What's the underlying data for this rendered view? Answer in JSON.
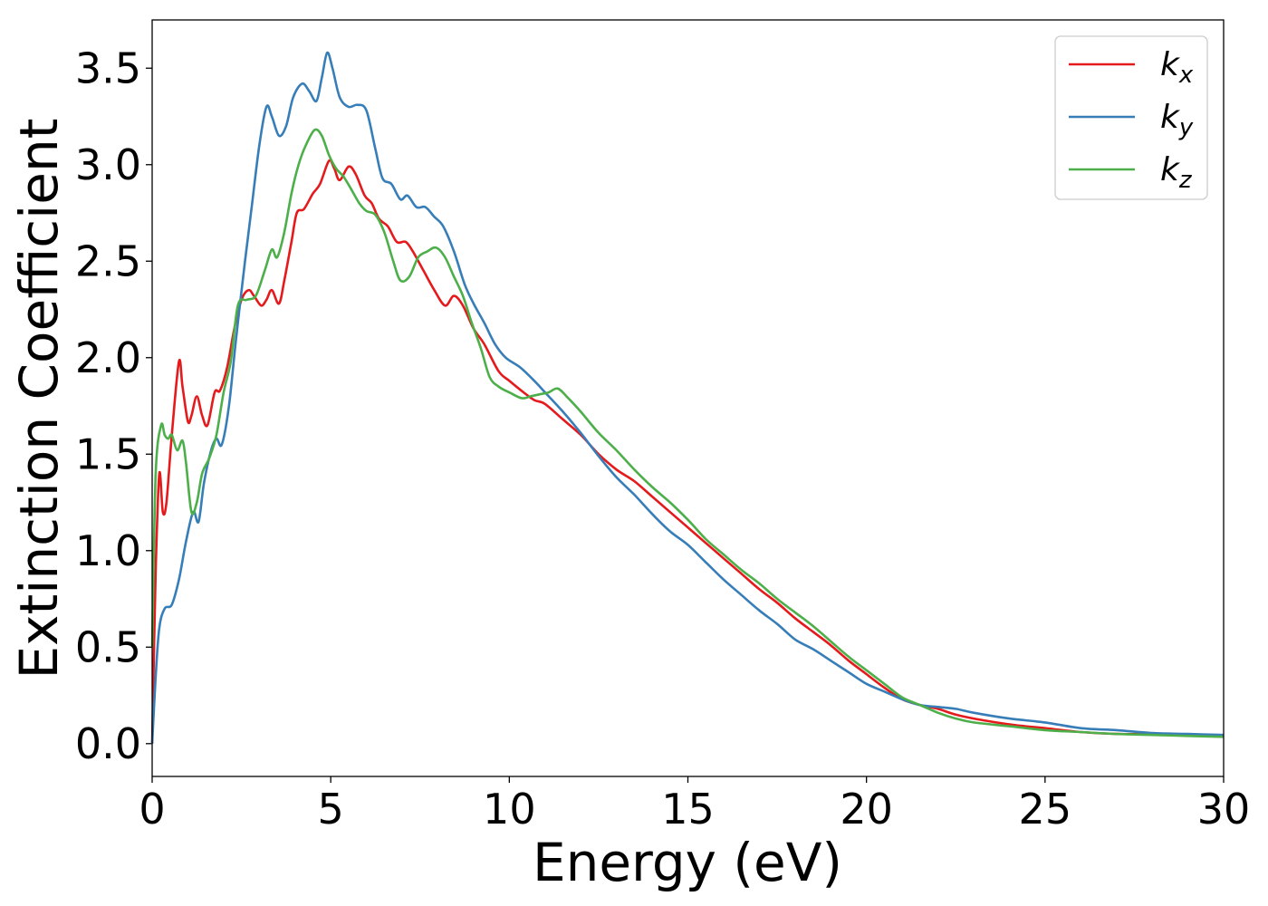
{
  "chart_data": {
    "type": "line",
    "xlabel": "Energy (eV)",
    "ylabel": "Extinction Coefficient",
    "xlim": [
      0,
      30
    ],
    "ylim": [
      -0.17,
      3.75
    ],
    "xticks": [
      0,
      5,
      10,
      15,
      20,
      25,
      30
    ],
    "xtick_labels": [
      "0",
      "5",
      "10",
      "15",
      "20",
      "25",
      "30"
    ],
    "yticks": [
      0.0,
      0.5,
      1.0,
      1.5,
      2.0,
      2.5,
      3.0,
      3.5
    ],
    "ytick_labels": [
      "0.0",
      "0.5",
      "1.0",
      "1.5",
      "2.0",
      "2.5",
      "3.0",
      "3.5"
    ],
    "grid": false,
    "legend_position": "top-right",
    "series": [
      {
        "name": "k",
        "sub": "x",
        "color": "#e41a1c",
        "points": [
          [
            0,
            0
          ],
          [
            0.1,
            0.9
          ],
          [
            0.2,
            1.4
          ],
          [
            0.3,
            1.2
          ],
          [
            0.4,
            1.25
          ],
          [
            0.55,
            1.6
          ],
          [
            0.75,
            1.98
          ],
          [
            0.85,
            1.85
          ],
          [
            1.0,
            1.67
          ],
          [
            1.1,
            1.7
          ],
          [
            1.25,
            1.8
          ],
          [
            1.4,
            1.7
          ],
          [
            1.55,
            1.65
          ],
          [
            1.75,
            1.82
          ],
          [
            1.9,
            1.83
          ],
          [
            2.1,
            1.95
          ],
          [
            2.3,
            2.15
          ],
          [
            2.5,
            2.3
          ],
          [
            2.7,
            2.35
          ],
          [
            2.85,
            2.32
          ],
          [
            3.05,
            2.27
          ],
          [
            3.2,
            2.3
          ],
          [
            3.35,
            2.35
          ],
          [
            3.55,
            2.28
          ],
          [
            3.7,
            2.4
          ],
          [
            3.9,
            2.6
          ],
          [
            4.05,
            2.75
          ],
          [
            4.25,
            2.77
          ],
          [
            4.5,
            2.85
          ],
          [
            4.7,
            2.9
          ],
          [
            4.95,
            3.02
          ],
          [
            5.1,
            2.98
          ],
          [
            5.25,
            2.92
          ],
          [
            5.5,
            2.99
          ],
          [
            5.7,
            2.95
          ],
          [
            5.95,
            2.84
          ],
          [
            6.15,
            2.8
          ],
          [
            6.35,
            2.72
          ],
          [
            6.6,
            2.68
          ],
          [
            6.85,
            2.6
          ],
          [
            7.1,
            2.6
          ],
          [
            7.3,
            2.55
          ],
          [
            7.6,
            2.45
          ],
          [
            7.9,
            2.35
          ],
          [
            8.2,
            2.27
          ],
          [
            8.45,
            2.32
          ],
          [
            8.7,
            2.27
          ],
          [
            9.0,
            2.15
          ],
          [
            9.3,
            2.07
          ],
          [
            9.7,
            1.93
          ],
          [
            10.0,
            1.88
          ],
          [
            10.4,
            1.82
          ],
          [
            10.7,
            1.78
          ],
          [
            11.0,
            1.76
          ],
          [
            11.5,
            1.68
          ],
          [
            12.0,
            1.6
          ],
          [
            12.5,
            1.5
          ],
          [
            13.0,
            1.42
          ],
          [
            13.5,
            1.36
          ],
          [
            14.0,
            1.28
          ],
          [
            14.5,
            1.2
          ],
          [
            15.0,
            1.12
          ],
          [
            15.5,
            1.04
          ],
          [
            16.0,
            0.96
          ],
          [
            16.5,
            0.88
          ],
          [
            17.0,
            0.8
          ],
          [
            17.5,
            0.73
          ],
          [
            18.0,
            0.65
          ],
          [
            18.5,
            0.58
          ],
          [
            19.0,
            0.51
          ],
          [
            19.5,
            0.43
          ],
          [
            20.0,
            0.36
          ],
          [
            20.5,
            0.29
          ],
          [
            21.0,
            0.23
          ],
          [
            21.5,
            0.2
          ],
          [
            22.0,
            0.18
          ],
          [
            22.5,
            0.15
          ],
          [
            23.0,
            0.13
          ],
          [
            24.0,
            0.1
          ],
          [
            25.0,
            0.08
          ],
          [
            26.0,
            0.06
          ],
          [
            27.0,
            0.05
          ],
          [
            28.0,
            0.05
          ],
          [
            29.0,
            0.045
          ],
          [
            30.0,
            0.04
          ]
        ]
      },
      {
        "name": "k",
        "sub": "y",
        "color": "#377eb8",
        "points": [
          [
            0,
            0
          ],
          [
            0.1,
            0.35
          ],
          [
            0.2,
            0.6
          ],
          [
            0.35,
            0.7
          ],
          [
            0.55,
            0.72
          ],
          [
            0.75,
            0.85
          ],
          [
            0.95,
            1.05
          ],
          [
            1.15,
            1.2
          ],
          [
            1.3,
            1.15
          ],
          [
            1.45,
            1.35
          ],
          [
            1.65,
            1.52
          ],
          [
            1.8,
            1.58
          ],
          [
            1.95,
            1.55
          ],
          [
            2.15,
            1.75
          ],
          [
            2.35,
            2.1
          ],
          [
            2.6,
            2.5
          ],
          [
            2.8,
            2.8
          ],
          [
            3.0,
            3.1
          ],
          [
            3.2,
            3.3
          ],
          [
            3.35,
            3.25
          ],
          [
            3.55,
            3.15
          ],
          [
            3.75,
            3.2
          ],
          [
            3.95,
            3.35
          ],
          [
            4.2,
            3.42
          ],
          [
            4.4,
            3.38
          ],
          [
            4.6,
            3.33
          ],
          [
            4.75,
            3.45
          ],
          [
            4.9,
            3.58
          ],
          [
            5.05,
            3.5
          ],
          [
            5.25,
            3.35
          ],
          [
            5.5,
            3.3
          ],
          [
            5.75,
            3.31
          ],
          [
            6.0,
            3.28
          ],
          [
            6.25,
            3.08
          ],
          [
            6.45,
            2.93
          ],
          [
            6.7,
            2.9
          ],
          [
            6.95,
            2.82
          ],
          [
            7.15,
            2.84
          ],
          [
            7.4,
            2.78
          ],
          [
            7.65,
            2.78
          ],
          [
            7.9,
            2.73
          ],
          [
            8.15,
            2.68
          ],
          [
            8.45,
            2.55
          ],
          [
            8.75,
            2.38
          ],
          [
            9.0,
            2.28
          ],
          [
            9.3,
            2.18
          ],
          [
            9.6,
            2.07
          ],
          [
            9.9,
            2.0
          ],
          [
            10.3,
            1.95
          ],
          [
            10.7,
            1.88
          ],
          [
            11.0,
            1.82
          ],
          [
            11.5,
            1.72
          ],
          [
            12.0,
            1.61
          ],
          [
            12.5,
            1.49
          ],
          [
            13.0,
            1.38
          ],
          [
            13.5,
            1.29
          ],
          [
            14.0,
            1.19
          ],
          [
            14.5,
            1.1
          ],
          [
            15.0,
            1.03
          ],
          [
            15.5,
            0.94
          ],
          [
            16.0,
            0.85
          ],
          [
            16.5,
            0.77
          ],
          [
            17.0,
            0.69
          ],
          [
            17.5,
            0.62
          ],
          [
            18.0,
            0.54
          ],
          [
            18.5,
            0.49
          ],
          [
            19.0,
            0.43
          ],
          [
            19.5,
            0.37
          ],
          [
            20.0,
            0.31
          ],
          [
            20.5,
            0.27
          ],
          [
            21.0,
            0.23
          ],
          [
            21.5,
            0.2
          ],
          [
            22.0,
            0.19
          ],
          [
            22.5,
            0.18
          ],
          [
            23.0,
            0.16
          ],
          [
            24.0,
            0.13
          ],
          [
            25.0,
            0.11
          ],
          [
            26.0,
            0.08
          ],
          [
            27.0,
            0.07
          ],
          [
            28.0,
            0.055
          ],
          [
            29.0,
            0.05
          ],
          [
            30.0,
            0.045
          ]
        ]
      },
      {
        "name": "k",
        "sub": "z",
        "color": "#4daf4a",
        "points": [
          [
            0,
            0.5
          ],
          [
            0.1,
            1.4
          ],
          [
            0.25,
            1.65
          ],
          [
            0.35,
            1.6
          ],
          [
            0.45,
            1.58
          ],
          [
            0.55,
            1.6
          ],
          [
            0.7,
            1.52
          ],
          [
            0.85,
            1.57
          ],
          [
            0.95,
            1.45
          ],
          [
            1.1,
            1.2
          ],
          [
            1.25,
            1.25
          ],
          [
            1.4,
            1.4
          ],
          [
            1.6,
            1.48
          ],
          [
            1.8,
            1.6
          ],
          [
            2.0,
            1.82
          ],
          [
            2.2,
            1.98
          ],
          [
            2.4,
            2.27
          ],
          [
            2.65,
            2.3
          ],
          [
            2.9,
            2.32
          ],
          [
            3.15,
            2.45
          ],
          [
            3.35,
            2.56
          ],
          [
            3.5,
            2.52
          ],
          [
            3.7,
            2.65
          ],
          [
            3.9,
            2.85
          ],
          [
            4.1,
            3.0
          ],
          [
            4.3,
            3.1
          ],
          [
            4.55,
            3.18
          ],
          [
            4.75,
            3.15
          ],
          [
            4.95,
            3.05
          ],
          [
            5.15,
            2.98
          ],
          [
            5.35,
            2.94
          ],
          [
            5.55,
            2.88
          ],
          [
            5.8,
            2.8
          ],
          [
            6.0,
            2.76
          ],
          [
            6.25,
            2.74
          ],
          [
            6.5,
            2.65
          ],
          [
            6.75,
            2.5
          ],
          [
            6.95,
            2.4
          ],
          [
            7.2,
            2.42
          ],
          [
            7.45,
            2.52
          ],
          [
            7.7,
            2.55
          ],
          [
            7.95,
            2.57
          ],
          [
            8.2,
            2.52
          ],
          [
            8.45,
            2.42
          ],
          [
            8.7,
            2.32
          ],
          [
            8.95,
            2.18
          ],
          [
            9.2,
            2.05
          ],
          [
            9.45,
            1.9
          ],
          [
            9.7,
            1.85
          ],
          [
            10.0,
            1.82
          ],
          [
            10.35,
            1.79
          ],
          [
            10.6,
            1.8
          ],
          [
            10.85,
            1.81
          ],
          [
            11.1,
            1.82
          ],
          [
            11.35,
            1.84
          ],
          [
            11.6,
            1.8
          ],
          [
            12.0,
            1.72
          ],
          [
            12.5,
            1.61
          ],
          [
            13.0,
            1.52
          ],
          [
            13.5,
            1.42
          ],
          [
            14.0,
            1.33
          ],
          [
            14.5,
            1.25
          ],
          [
            15.0,
            1.16
          ],
          [
            15.5,
            1.06
          ],
          [
            16.0,
            0.98
          ],
          [
            16.5,
            0.9
          ],
          [
            17.0,
            0.83
          ],
          [
            17.5,
            0.75
          ],
          [
            18.0,
            0.68
          ],
          [
            18.5,
            0.61
          ],
          [
            19.0,
            0.53
          ],
          [
            19.5,
            0.45
          ],
          [
            20.0,
            0.38
          ],
          [
            20.5,
            0.31
          ],
          [
            21.0,
            0.24
          ],
          [
            21.5,
            0.2
          ],
          [
            22.0,
            0.16
          ],
          [
            22.5,
            0.13
          ],
          [
            23.0,
            0.11
          ],
          [
            24.0,
            0.09
          ],
          [
            25.0,
            0.07
          ],
          [
            26.0,
            0.06
          ],
          [
            27.0,
            0.05
          ],
          [
            28.0,
            0.045
          ],
          [
            29.0,
            0.04
          ],
          [
            30.0,
            0.035
          ]
        ]
      }
    ]
  }
}
